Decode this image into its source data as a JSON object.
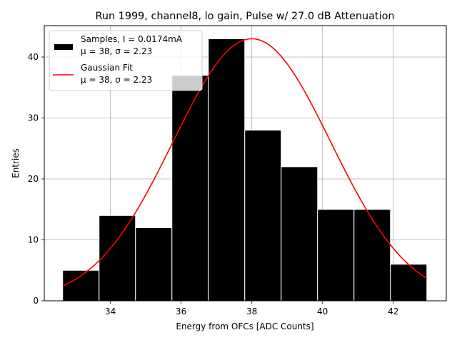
{
  "chart_data": {
    "type": "bar",
    "title": "Run 1999, channel8, lo gain, Pulse w/ 27.0 dB Attenuation",
    "xlabel": "Energy from OFCs [ADC Counts]",
    "ylabel": "Entries",
    "xlim": [
      32.13,
      43.5
    ],
    "ylim": [
      0,
      45.15
    ],
    "grid": true,
    "legend_position": "top-left",
    "xticks": [
      34,
      36,
      38,
      40,
      42
    ],
    "yticks": [
      0,
      10,
      20,
      30,
      40
    ],
    "bin_edges": [
      32.65,
      33.68,
      34.71,
      35.74,
      36.77,
      37.8,
      38.83,
      39.86,
      40.89,
      41.92,
      42.95
    ],
    "values": [
      5,
      14,
      12,
      37,
      43,
      28,
      22,
      15,
      15,
      6
    ],
    "fit": {
      "name": "Gaussian Fit",
      "mu": 38,
      "sigma": 2.23,
      "amplitude": 43,
      "x_range": [
        32.65,
        42.95
      ],
      "color": "#ff0000"
    },
    "legend": [
      {
        "label_line1": "Samples, I = 0.0174mA",
        "label_line2": "μ = 38, σ = 2.23",
        "kind": "patch",
        "color": "#000000"
      },
      {
        "label_line1": "Gaussian Fit",
        "label_line2": "μ = 38, σ = 2.23",
        "kind": "line",
        "color": "#ff0000"
      }
    ]
  }
}
